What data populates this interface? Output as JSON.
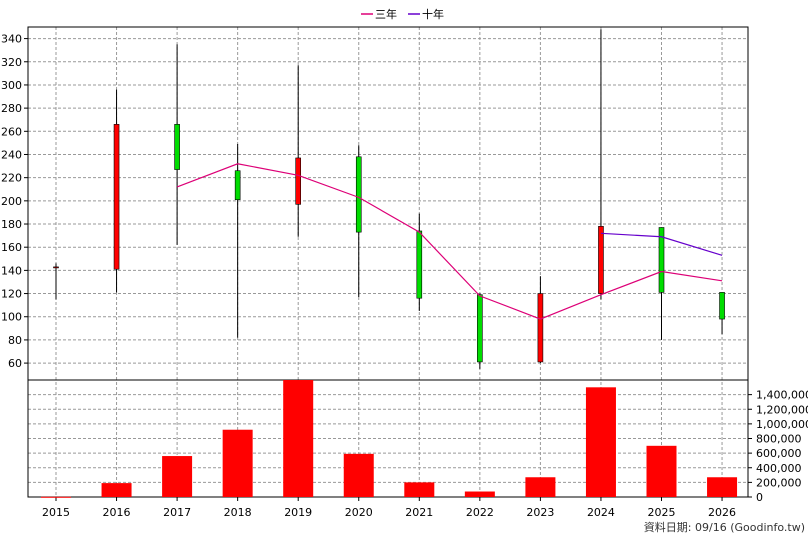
{
  "chart_data": {
    "type": "candlestick",
    "categories": [
      "2015",
      "2016",
      "2017",
      "2018",
      "2019",
      "2020",
      "2021",
      "2022",
      "2023",
      "2024",
      "2025",
      "2026"
    ],
    "legend": {
      "placement": "top-center",
      "items": [
        {
          "name": "三年",
          "color": "#dd0077"
        },
        {
          "name": "十年",
          "color": "#6600cc"
        }
      ]
    },
    "price_axis": {
      "ticks": [
        60,
        80,
        100,
        120,
        140,
        160,
        180,
        200,
        220,
        240,
        260,
        280,
        300,
        320,
        340
      ],
      "ylim": [
        48,
        350
      ]
    },
    "volume_axis": {
      "tick_labels": [
        "0",
        "200,000",
        "400,000",
        "600,000",
        "800,000",
        "1,000,000",
        "1,200,000",
        "1,400,000"
      ],
      "ticks": [
        0,
        200000,
        400000,
        600000,
        800000,
        1000000,
        1200000,
        1400000
      ],
      "ylim": [
        0,
        1650000
      ]
    },
    "candles": [
      {
        "open": 143,
        "high": 146,
        "low": 115,
        "close": 143
      },
      {
        "open": 141,
        "high": 296,
        "low": 121,
        "close": 266
      },
      {
        "open": 266,
        "high": 335,
        "low": 162,
        "close": 227
      },
      {
        "open": 226,
        "high": 249,
        "low": 82,
        "close": 201
      },
      {
        "open": 197,
        "high": 317,
        "low": 169,
        "close": 237
      },
      {
        "open": 238,
        "high": 248,
        "low": 117,
        "close": 173
      },
      {
        "open": 174,
        "high": 189,
        "low": 105,
        "close": 116
      },
      {
        "open": 119,
        "high": 120,
        "low": 55,
        "close": 61
      },
      {
        "open": 61,
        "high": 135,
        "low": 60,
        "close": 120
      },
      {
        "open": 120,
        "high": 348,
        "low": 115,
        "close": 178
      },
      {
        "open": 177,
        "high": 177,
        "low": 80,
        "close": 121
      },
      {
        "open": 121,
        "high": 121,
        "low": 85,
        "close": 98
      }
    ],
    "ma_3y": [
      null,
      null,
      212,
      232,
      222,
      203,
      173,
      118,
      98,
      119,
      139,
      131
    ],
    "ma_10y": [
      null,
      null,
      null,
      null,
      null,
      null,
      null,
      null,
      null,
      172,
      169,
      153
    ],
    "volume": [
      3000,
      190000,
      560000,
      920000,
      1600000,
      590000,
      200000,
      75000,
      270000,
      1500000,
      700000,
      270000
    ],
    "colors": {
      "up": "#ff0000",
      "down": "#00dd00",
      "volume": "#ff0000",
      "grid": "#999999"
    }
  },
  "footer": {
    "data_date": "資料日期: 09/16  (Goodinfo.tw)"
  }
}
